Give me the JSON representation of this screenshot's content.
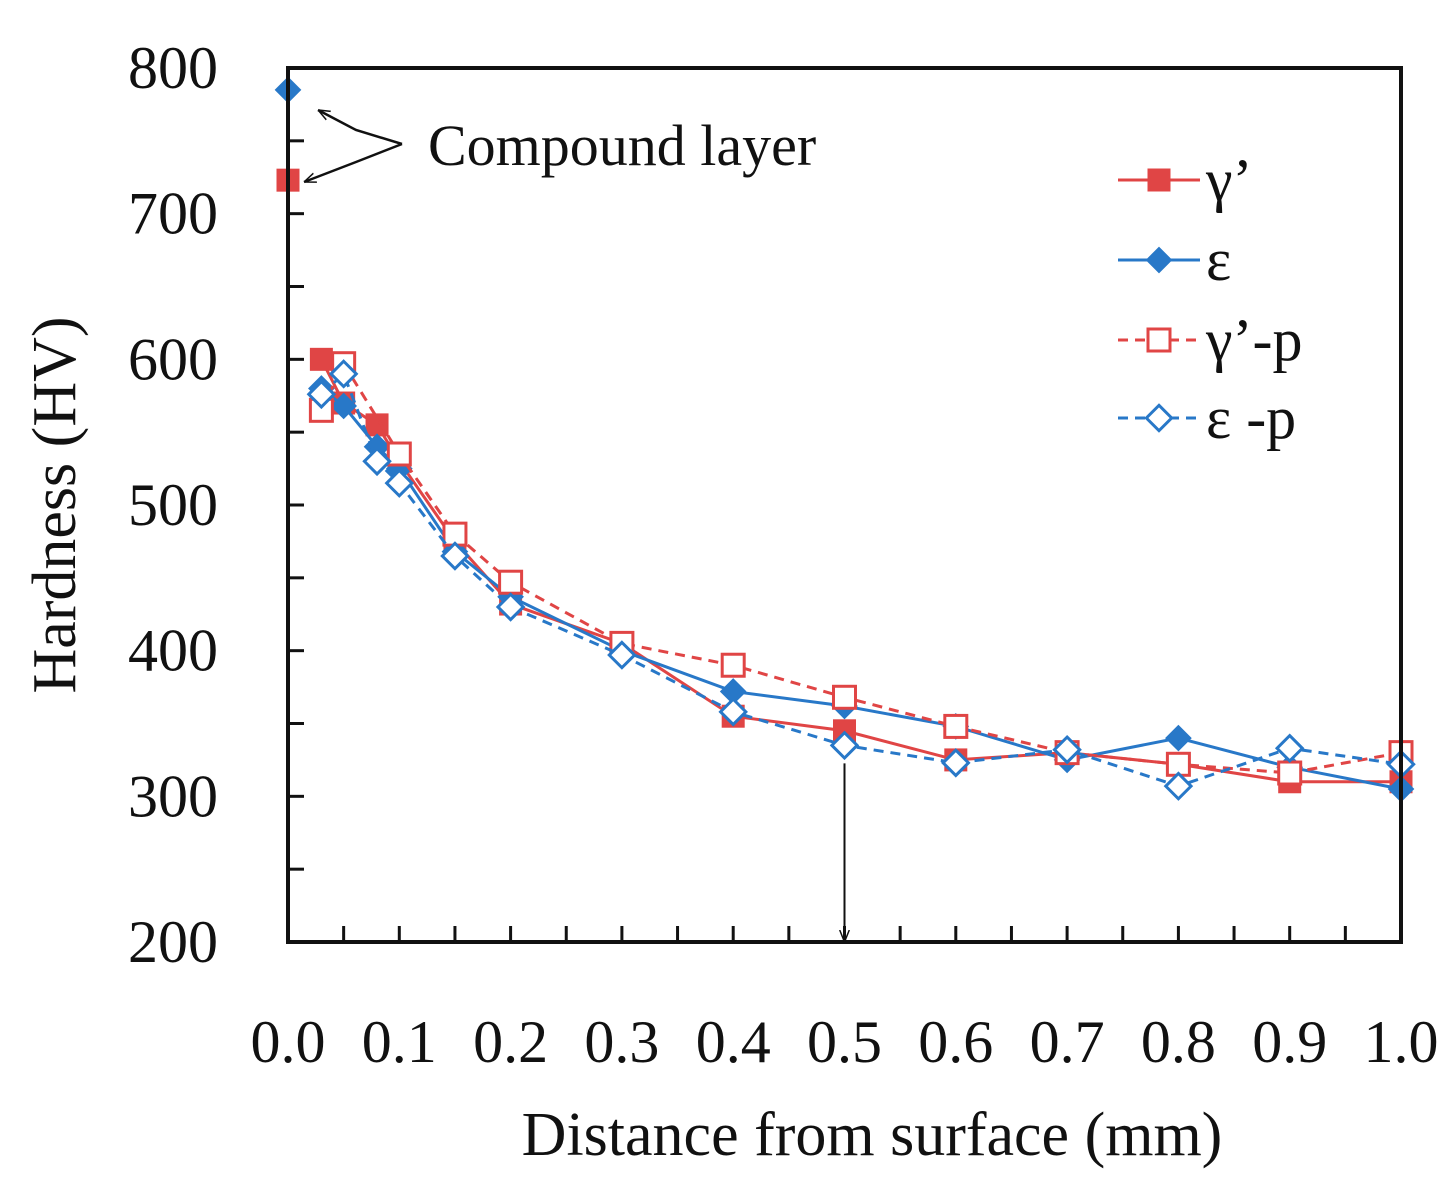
{
  "chart_data": {
    "type": "line",
    "title": "",
    "xlabel": "Distance from surface (mm)",
    "ylabel": "Hardness (HV)",
    "xlim": [
      0.0,
      1.0
    ],
    "ylim": [
      200,
      800
    ],
    "xticks": [
      0.0,
      0.1,
      0.2,
      0.3,
      0.4,
      0.5,
      0.6,
      0.7,
      0.8,
      0.9,
      1.0
    ],
    "xtick_labels": [
      "0.0",
      "0.1",
      "0.2",
      "0.3",
      "0.4",
      "0.5",
      "0.6",
      "0.7",
      "0.8",
      "0.9",
      "1.0"
    ],
    "yticks": [
      200,
      300,
      400,
      500,
      600,
      700,
      800
    ],
    "ytick_labels": [
      "200",
      "300",
      "400",
      "500",
      "600",
      "700",
      "800"
    ],
    "legend_position": "top-right",
    "grid": false,
    "series": [
      {
        "name": "γ’",
        "color": "#e04545",
        "marker": "square-filled",
        "line": "solid",
        "x": [
          0.03,
          0.05,
          0.08,
          0.1,
          0.15,
          0.2,
          0.3,
          0.4,
          0.5,
          0.6,
          0.7,
          0.8,
          0.9,
          1.0
        ],
        "y": [
          600,
          570,
          555,
          530,
          475,
          432,
          405,
          355,
          345,
          325,
          330,
          322,
          310,
          310
        ]
      },
      {
        "name": "ε",
        "color": "#2878c8",
        "marker": "diamond-filled",
        "line": "solid",
        "x": [
          0.03,
          0.05,
          0.08,
          0.1,
          0.15,
          0.2,
          0.3,
          0.4,
          0.5,
          0.6,
          0.7,
          0.8,
          0.9,
          1.0
        ],
        "y": [
          580,
          568,
          540,
          525,
          468,
          437,
          400,
          372,
          362,
          348,
          325,
          340,
          320,
          305
        ]
      },
      {
        "name": "γ’-p",
        "color": "#e04545",
        "marker": "square-open",
        "line": "dashed",
        "x": [
          0.03,
          0.05,
          0.1,
          0.15,
          0.2,
          0.3,
          0.4,
          0.5,
          0.6,
          0.7,
          0.8,
          0.9,
          1.0
        ],
        "y": [
          565,
          597,
          535,
          480,
          447,
          405,
          390,
          368,
          348,
          330,
          322,
          316,
          330
        ]
      },
      {
        "name": "ε -p",
        "color": "#2878c8",
        "marker": "diamond-open",
        "line": "dashed",
        "x": [
          0.03,
          0.05,
          0.08,
          0.1,
          0.15,
          0.2,
          0.3,
          0.4,
          0.5,
          0.6,
          0.7,
          0.8,
          0.9,
          1.0
        ],
        "y": [
          576,
          590,
          530,
          515,
          465,
          430,
          397,
          358,
          335,
          323,
          332,
          307,
          333,
          322
        ]
      }
    ],
    "compound_layer_points": [
      {
        "series": "ε",
        "x": 0.0,
        "y": 785
      },
      {
        "series": "γ’",
        "x": 0.0,
        "y": 723
      }
    ],
    "annotations": {
      "compound_layer_label": "Compound layer",
      "vertical_arrow_x": 0.5,
      "vertical_arrow_from_y": 335,
      "vertical_arrow_to_y": 200
    }
  }
}
